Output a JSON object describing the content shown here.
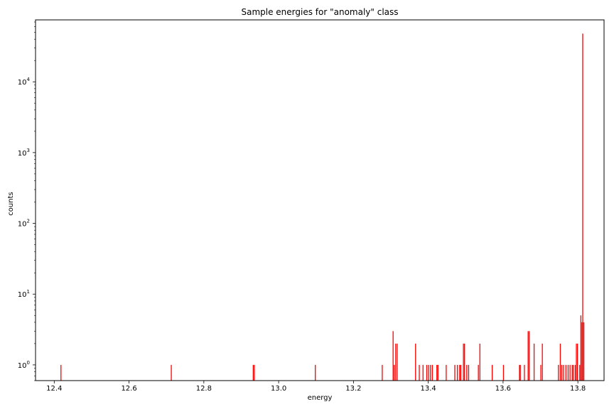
{
  "chart_data": {
    "type": "bar",
    "title": "Sample energies for \"anomaly\" class",
    "xlabel": "energy",
    "ylabel": "counts",
    "yscale": "log",
    "xlim": [
      12.35,
      13.87
    ],
    "ylim": [
      0.6,
      75000
    ],
    "grid": false,
    "bar_color": "#ff0000",
    "xticks": [
      12.4,
      12.6,
      12.8,
      13.0,
      13.2,
      13.4,
      13.6,
      13.8
    ],
    "xtick_labels": [
      "12.4",
      "12.6",
      "12.8",
      "13.0",
      "13.2",
      "13.4",
      "13.6",
      "13.8"
    ],
    "yticks": [
      {
        "value": 1,
        "base": "10",
        "exp": "0"
      },
      {
        "value": 10,
        "base": "10",
        "exp": "1"
      },
      {
        "value": 100,
        "base": "10",
        "exp": "2"
      },
      {
        "value": 1000,
        "base": "10",
        "exp": "3"
      },
      {
        "value": 10000,
        "base": "10",
        "exp": "4"
      }
    ],
    "x": [
      12.418,
      12.713,
      12.932,
      12.935,
      13.098,
      13.277,
      13.306,
      13.309,
      13.313,
      13.317,
      13.366,
      13.376,
      13.386,
      13.396,
      13.401,
      13.406,
      13.411,
      13.423,
      13.426,
      13.448,
      13.471,
      13.478,
      13.484,
      13.487,
      13.494,
      13.497,
      13.503,
      13.508,
      13.534,
      13.538,
      13.571,
      13.601,
      13.644,
      13.646,
      13.657,
      13.667,
      13.67,
      13.683,
      13.701,
      13.705,
      13.748,
      13.753,
      13.757,
      13.762,
      13.768,
      13.774,
      13.779,
      13.785,
      13.788,
      13.793,
      13.796,
      13.799,
      13.805,
      13.808,
      13.811,
      13.813,
      13.816
    ],
    "values": [
      1,
      1,
      1,
      1,
      1,
      1,
      3,
      1,
      2,
      2,
      2,
      1,
      1,
      1,
      1,
      1,
      1,
      1,
      1,
      1,
      1,
      1,
      1,
      1,
      2,
      2,
      1,
      1,
      1,
      2,
      1,
      1,
      1,
      1,
      1,
      3,
      3,
      2,
      1,
      2,
      1,
      2,
      1,
      1,
      1,
      1,
      1,
      1,
      1,
      1,
      2,
      2,
      1,
      5,
      4,
      48000,
      4
    ]
  }
}
